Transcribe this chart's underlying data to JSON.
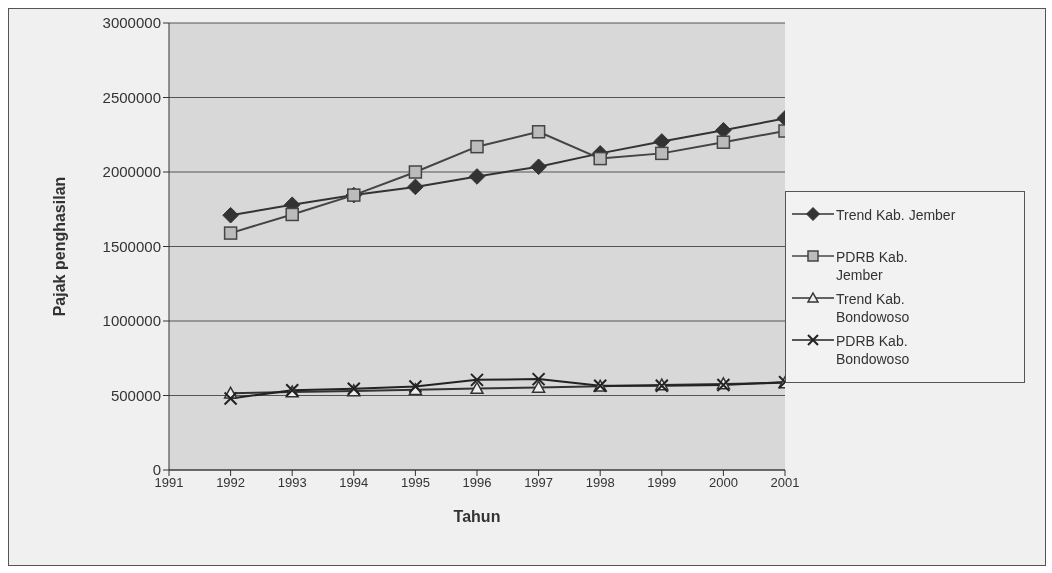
{
  "chart_data": {
    "type": "line",
    "xlabel": "Tahun",
    "ylabel": "Pajak penghasilan",
    "x": [
      1992,
      1993,
      1994,
      1995,
      1996,
      1997,
      1998,
      1999,
      2000,
      2001
    ],
    "xlim": [
      1991,
      2001
    ],
    "xticks": [
      1991,
      1992,
      1993,
      1994,
      1995,
      1996,
      1997,
      1998,
      1999,
      2000,
      2001
    ],
    "ylim": [
      0,
      3000000
    ],
    "yticks": [
      0,
      500000,
      1000000,
      1500000,
      2000000,
      2500000,
      3000000
    ],
    "grid": "y",
    "legend": "right",
    "line_style": "solid",
    "series": [
      {
        "name": "Trend Kab. Jember",
        "color": "#333333",
        "marker": "diamond",
        "values": [
          1710000,
          1780000,
          1845000,
          1900000,
          1970000,
          2035000,
          2125000,
          2205000,
          2280000,
          2360000
        ]
      },
      {
        "name": "PDRB Kab. Jember",
        "color": "#444444",
        "marker": "square",
        "values": [
          1590000,
          1715000,
          1845000,
          2000000,
          2170000,
          2270000,
          2090000,
          2125000,
          2200000,
          2275000
        ]
      },
      {
        "name": "Trend Kab. Bondowoso",
        "color": "#333333",
        "marker": "triangle",
        "values": [
          515000,
          523000,
          531000,
          539000,
          547000,
          554000,
          562000,
          570000,
          578000,
          585000
        ]
      },
      {
        "name": "PDRB Kab. Bondowoso",
        "color": "#222222",
        "marker": "cross",
        "values": [
          480000,
          535000,
          545000,
          560000,
          605000,
          610000,
          565000,
          565000,
          570000,
          590000
        ]
      }
    ]
  }
}
